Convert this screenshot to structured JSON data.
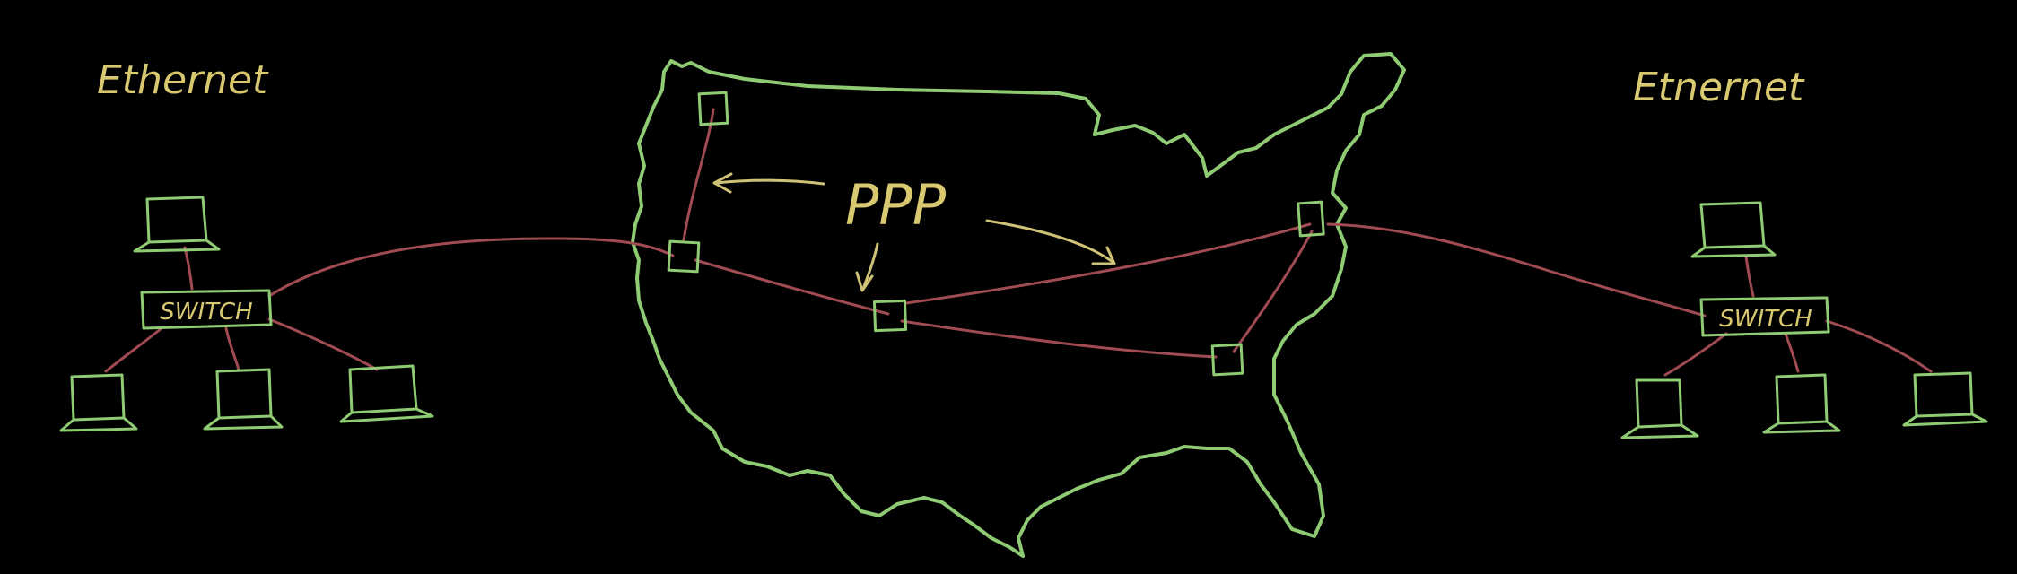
{
  "labels": {
    "left_network": "Ethernet",
    "right_network": "Etnernet",
    "wan_protocol": "PPP",
    "left_switch": "SWITCH",
    "right_switch": "SWITCH"
  },
  "colors": {
    "background": "#000000",
    "device_outline": "#8ecb73",
    "link": "#a04a52",
    "annotation": "#cfc276"
  },
  "icons": {
    "computer": "laptop-icon",
    "router": "router-box-icon",
    "map": "us-map-outline"
  }
}
